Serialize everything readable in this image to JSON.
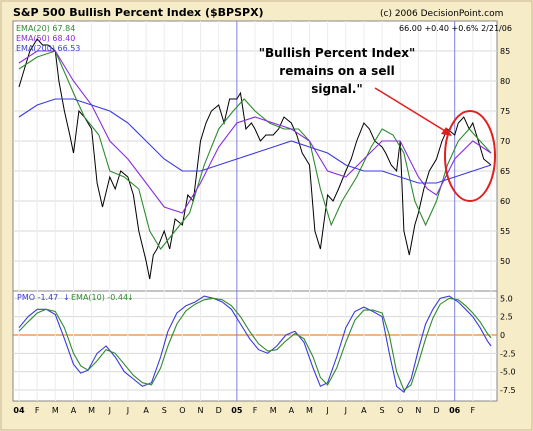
{
  "header": {
    "title": "S&P 500 Bullish Percent Index ($BPSPX)",
    "copyright": "(c) 2006 DecisionPoint.com",
    "quote": "66.00 +0.40 +0.6% 2/21/06"
  },
  "legend_top": [
    {
      "label": "EMA(20) 67.84",
      "color": "#2e8b2e"
    },
    {
      "label": "EMA(50) 68.40",
      "color": "#8a2be2"
    },
    {
      "label": "EMA(200) 66.53",
      "color": "#3a3ae0"
    }
  ],
  "annotation": {
    "lines": [
      "\"Bullish Percent Index\"",
      "remains on a sell",
      "signal.\""
    ],
    "color": "#e0201f"
  },
  "pmo_legend": {
    "pmo_label": "PMO -1.47",
    "ema_label": "EMA(10) -0.44",
    "pmo_color": "#3a3ae0",
    "ema_color": "#2e8b2e"
  },
  "x_tick_labels": [
    "04",
    "F",
    "M",
    "A",
    "M",
    "J",
    "J",
    "A",
    "S",
    "O",
    "N",
    "D",
    "05",
    "F",
    "M",
    "A",
    "M",
    "J",
    "J",
    "A",
    "S",
    "O",
    "N",
    "D",
    "06",
    "F"
  ],
  "chart_data": [
    {
      "type": "line",
      "title": "S&P 500 Bullish Percent Index ($BPSPX)",
      "ylim": [
        45,
        90
      ],
      "yticks": [
        50,
        55,
        60,
        65,
        70,
        75,
        80,
        85
      ],
      "grid": true,
      "series": [
        {
          "name": "$BPSPX",
          "color": "#000000",
          "x": [
            0,
            0.3,
            0.6,
            1,
            1.3,
            1.6,
            2,
            2.2,
            2.5,
            2.8,
            3,
            3.3,
            3.6,
            4,
            4.3,
            4.6,
            5,
            5.3,
            5.6,
            6,
            6.3,
            6.6,
            7,
            7.2,
            7.4,
            7.6,
            8,
            8.3,
            8.6,
            9,
            9.3,
            9.6,
            10,
            10.3,
            10.6,
            11,
            11.3,
            11.6,
            12,
            12.2,
            12.5,
            12.8,
            13,
            13.3,
            13.6,
            14,
            14.3,
            14.6,
            15,
            15.3,
            15.6,
            16,
            16.3,
            16.6,
            17,
            17.3,
            17.6,
            18,
            18.3,
            18.6,
            19,
            19.3,
            19.6,
            20,
            20.2,
            20.5,
            20.8,
            21,
            21.2,
            21.5,
            21.8,
            22,
            22.3,
            22.6,
            23,
            23.3,
            23.6,
            24,
            24.2,
            24.5,
            24.8,
            25,
            25.3,
            25.6,
            26
          ],
          "values": [
            79,
            82,
            85,
            87,
            86,
            86,
            85,
            80,
            75,
            71,
            68,
            75,
            74,
            72,
            63,
            59,
            64,
            62,
            65,
            64,
            61,
            55,
            50,
            47,
            51,
            52,
            55,
            52,
            57,
            56,
            61,
            60,
            70,
            73,
            75,
            76,
            73,
            77,
            77,
            78,
            72,
            73,
            72,
            70,
            71,
            71,
            72,
            74,
            73,
            71,
            68,
            66,
            55,
            52,
            61,
            60,
            62,
            65,
            67,
            70,
            73,
            72,
            70,
            69,
            68,
            66,
            65,
            70,
            55,
            51,
            56,
            58,
            62,
            65,
            67,
            70,
            72,
            71,
            73,
            74,
            72,
            73,
            70,
            67,
            66
          ]
        },
        {
          "name": "EMA(20)",
          "color": "#2e8b2e",
          "x": [
            0,
            1,
            2,
            3,
            3.6,
            4.4,
            5,
            5.8,
            6.6,
            7.2,
            7.8,
            8.6,
            9.4,
            10.2,
            11,
            11.8,
            12.4,
            13,
            13.8,
            14.6,
            15.4,
            16,
            16.6,
            17.2,
            17.8,
            18.6,
            19.4,
            20,
            20.6,
            21.2,
            21.8,
            22.4,
            23,
            23.6,
            24.2,
            24.8,
            25.4,
            26
          ],
          "values": [
            82,
            84,
            85,
            78,
            74,
            71,
            65,
            64,
            62,
            55,
            52,
            55,
            58,
            66,
            72,
            75,
            77,
            75,
            73,
            72,
            72,
            70,
            62,
            56,
            60,
            64,
            69,
            72,
            71,
            68,
            60,
            56,
            60,
            66,
            70,
            72,
            70,
            68
          ]
        },
        {
          "name": "EMA(50)",
          "color": "#8a2be2",
          "x": [
            0,
            1,
            2,
            3,
            4,
            5,
            6,
            7,
            8,
            9,
            10,
            11,
            12,
            13,
            14,
            15,
            16,
            17,
            18,
            19,
            20,
            21,
            22,
            22.5,
            23,
            24,
            25,
            26
          ],
          "values": [
            83,
            85,
            85,
            80,
            76,
            70,
            67,
            63,
            59,
            58,
            63,
            69,
            73,
            74,
            73,
            72,
            70,
            65,
            64,
            67,
            70,
            70,
            64,
            62,
            61,
            67,
            70,
            68
          ]
        },
        {
          "name": "EMA(200)",
          "color": "#3a3ae0",
          "x": [
            0,
            1,
            2,
            3,
            4,
            5,
            6,
            7,
            8,
            9,
            10,
            11,
            12,
            13,
            14,
            15,
            16,
            17,
            18,
            19,
            20,
            21,
            22,
            23,
            24,
            25,
            26
          ],
          "values": [
            74,
            76,
            77,
            77,
            76,
            75,
            73,
            70,
            67,
            65,
            65,
            66,
            67,
            68,
            69,
            70,
            69,
            68,
            66,
            65,
            65,
            64,
            63,
            63,
            64,
            65,
            66
          ]
        }
      ]
    },
    {
      "type": "line",
      "ylim": [
        -9,
        6
      ],
      "yticks": [
        -7.5,
        -5.0,
        -2.5,
        0,
        2.5,
        5.0
      ],
      "zero_line_color": "#e58a3c",
      "grid": true,
      "series": [
        {
          "name": "PMO",
          "color": "#3a3ae0",
          "x": [
            0,
            0.5,
            1,
            1.5,
            2,
            2.5,
            3,
            3.4,
            3.8,
            4.3,
            4.8,
            5.3,
            5.8,
            6.3,
            6.8,
            7.3,
            7.8,
            8.2,
            8.7,
            9.2,
            9.7,
            10.2,
            10.7,
            11.2,
            11.7,
            12.2,
            12.7,
            13.2,
            13.7,
            14.2,
            14.7,
            15.2,
            15.7,
            16.2,
            16.6,
            17,
            17.5,
            18,
            18.5,
            19,
            19.5,
            20,
            20.4,
            20.8,
            21.2,
            21.6,
            22,
            22.4,
            22.8,
            23.2,
            23.7,
            24.2,
            24.6,
            25,
            25.4,
            25.8,
            26
          ],
          "values": [
            1,
            2.5,
            3.5,
            3.5,
            2.8,
            -0.5,
            -4,
            -5.2,
            -4.8,
            -2.5,
            -1.5,
            -3,
            -5,
            -6,
            -7,
            -6.5,
            -3,
            0.5,
            3,
            4,
            4.5,
            5.3,
            5,
            4.5,
            3.5,
            1.5,
            -0.5,
            -2,
            -2.5,
            -1.5,
            0,
            0.5,
            -1,
            -4.5,
            -7,
            -6.5,
            -3,
            1,
            3.2,
            3.8,
            3.2,
            2.5,
            -2.5,
            -7,
            -7.8,
            -6,
            -2,
            1.5,
            3.5,
            5,
            5.3,
            4.5,
            3.5,
            2.5,
            1,
            -0.8,
            -1.5
          ]
        },
        {
          "name": "EMA(10)",
          "color": "#2e8b2e",
          "x": [
            0,
            0.5,
            1,
            1.5,
            2,
            2.5,
            3,
            3.4,
            3.8,
            4.3,
            4.8,
            5.3,
            5.8,
            6.3,
            6.8,
            7.3,
            7.8,
            8.2,
            8.7,
            9.2,
            9.7,
            10.2,
            10.7,
            11.2,
            11.7,
            12.2,
            12.7,
            13.2,
            13.7,
            14.2,
            14.7,
            15.2,
            15.7,
            16.2,
            16.6,
            17,
            17.5,
            18,
            18.5,
            19,
            19.5,
            20,
            20.4,
            20.8,
            21.2,
            21.6,
            22,
            22.4,
            22.8,
            23.2,
            23.7,
            24.2,
            24.6,
            25,
            25.4,
            25.8,
            26
          ],
          "values": [
            0.5,
            1.8,
            3,
            3.5,
            3.2,
            1,
            -2.5,
            -4.2,
            -4.8,
            -3.5,
            -2,
            -2.5,
            -4,
            -5.5,
            -6.5,
            -6.8,
            -4.5,
            -1.5,
            1.5,
            3.3,
            4.2,
            4.8,
            5,
            4.8,
            4,
            2.5,
            0.5,
            -1.2,
            -2.2,
            -2,
            -0.8,
            0.2,
            -0.5,
            -3,
            -5.8,
            -6.8,
            -4.5,
            -1,
            2,
            3.4,
            3.4,
            3,
            0,
            -5,
            -7.5,
            -6.8,
            -3.8,
            -0.5,
            2.3,
            4.2,
            5,
            4.8,
            4,
            3,
            1.8,
            0.2,
            -0.4
          ]
        }
      ]
    }
  ]
}
